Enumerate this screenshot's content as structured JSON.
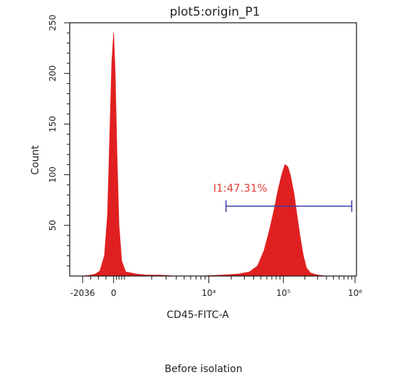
{
  "chart_data": {
    "type": "area",
    "title": "plot5:origin_P1",
    "xlabel": "CD45-FITC-A",
    "ylabel": "Count",
    "x_scale": "biexponential",
    "ylim": [
      0,
      250
    ],
    "y_ticks": [
      "50",
      "100",
      "150",
      "200",
      "250"
    ],
    "x_ticks": [
      {
        "value": -2036,
        "label": "-2036"
      },
      {
        "value": 0,
        "label": "0"
      },
      {
        "value": 10000,
        "label": "10⁴"
      },
      {
        "value": 100000,
        "label": "10⁵"
      },
      {
        "value": 1000000,
        "label": "10⁶"
      }
    ],
    "series": [
      {
        "fill_color": "#e02020",
        "points": [
          [
            -2036,
            0
          ],
          [
            -1500,
            1
          ],
          [
            -1200,
            2
          ],
          [
            -900,
            5
          ],
          [
            -600,
            20
          ],
          [
            -400,
            60
          ],
          [
            -250,
            140
          ],
          [
            -120,
            210
          ],
          [
            0,
            240
          ],
          [
            120,
            200
          ],
          [
            250,
            120
          ],
          [
            400,
            50
          ],
          [
            600,
            15
          ],
          [
            900,
            4
          ],
          [
            1300,
            2
          ],
          [
            1700,
            1
          ],
          [
            2500,
            1
          ],
          [
            4000,
            0
          ],
          [
            8000,
            0
          ],
          [
            15000,
            1
          ],
          [
            25000,
            2
          ],
          [
            35000,
            4
          ],
          [
            45000,
            10
          ],
          [
            55000,
            25
          ],
          [
            65000,
            45
          ],
          [
            75000,
            65
          ],
          [
            85000,
            85
          ],
          [
            95000,
            100
          ],
          [
            105000,
            110
          ],
          [
            115000,
            108
          ],
          [
            125000,
            100
          ],
          [
            140000,
            82
          ],
          [
            155000,
            60
          ],
          [
            170000,
            40
          ],
          [
            190000,
            20
          ],
          [
            210000,
            8
          ],
          [
            240000,
            3
          ],
          [
            300000,
            1
          ],
          [
            400000,
            0
          ],
          [
            1000000,
            0
          ]
        ]
      }
    ],
    "gate": {
      "label": "I1:47.31%",
      "x_start": 17000,
      "x_end": 900000,
      "y": 69,
      "color": "#3a3fa8",
      "label_color": "#e0403a"
    },
    "grid": false,
    "legend": "none"
  },
  "caption": "Before isolation"
}
